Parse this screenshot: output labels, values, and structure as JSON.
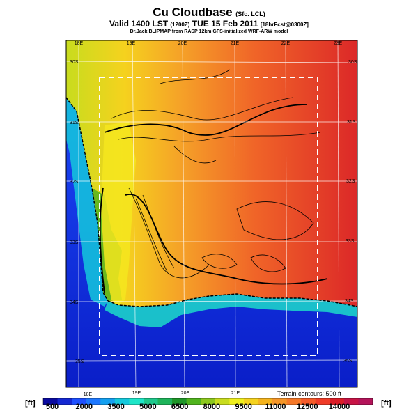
{
  "title": {
    "main": "Cu Cloudbase",
    "main_sub": "(Sfc. LCL)",
    "valid": "Valid 1400 LST",
    "valid_small": "(1200Z)",
    "valid_date": "TUE 15 Feb 2011",
    "forecast_small": "[18hrFcst@0300Z]",
    "credit": "Dr.Jack BLIPMAP from RASP 12km GFS-initialized WRF-ARW model"
  },
  "map": {
    "lon_labels_top": [
      "18E",
      "19E",
      "20E",
      "21E",
      "22E",
      "23E"
    ],
    "lon_labels_bottom": [
      "18E",
      "19E",
      "20E",
      "21E"
    ],
    "lat_labels_left": [
      "30S",
      "31S",
      "32S",
      "33S",
      "34S",
      "35S"
    ],
    "lat_labels_right": [
      "30S",
      "31S",
      "32S",
      "33S",
      "34S",
      "35S"
    ],
    "terrain_note": "Terrain contours: 500 ft"
  },
  "colorbar": {
    "unit_left": "[ft]",
    "unit_right": "[ft]",
    "labels": [
      "500",
      "2000",
      "3500",
      "5000",
      "6500",
      "8000",
      "9500",
      "11000",
      "12500",
      "14000"
    ],
    "colors": [
      "#0a0aa0",
      "#1428d2",
      "#1e50ff",
      "#1e78ff",
      "#14a0f0",
      "#14c8dc",
      "#1ee6c8",
      "#1ec88c",
      "#1eb45a",
      "#1e9628",
      "#50b41e",
      "#8cc81e",
      "#c8dc1e",
      "#f0f01e",
      "#f5d21e",
      "#f5b41e",
      "#f59628",
      "#f57828",
      "#f55a28",
      "#f03c28",
      "#dc1e28",
      "#c81446",
      "#b4145a"
    ]
  }
}
